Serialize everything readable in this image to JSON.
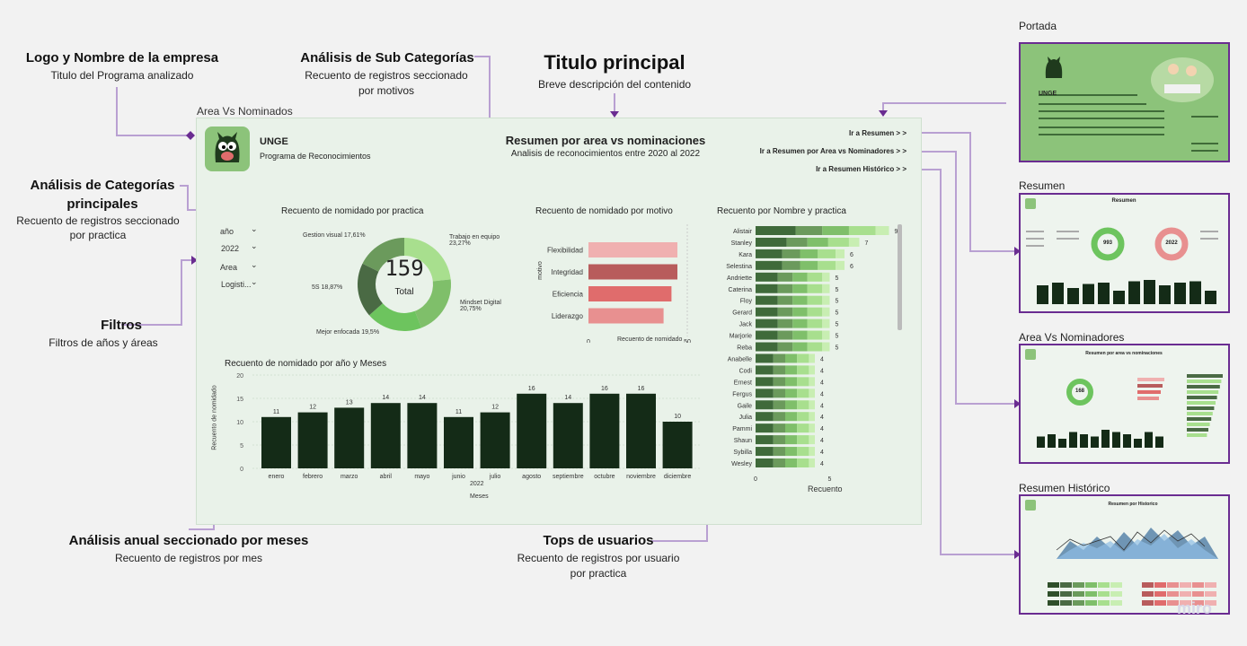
{
  "annotations": {
    "logo": {
      "title": "Logo y Nombre de la empresa",
      "sub": "Titulo del Programa analizado"
    },
    "subcat": {
      "title": "Análisis de Sub Categorías",
      "sub1": "Recuento de registros seccionado",
      "sub2": "por motivos"
    },
    "main": {
      "title": "Titulo principal",
      "sub": "Breve descripción del contenido"
    },
    "cat": {
      "title1": "Análisis de Categorías",
      "title2": "principales",
      "sub1": "Recuento de registros seccionado",
      "sub2": "por practica"
    },
    "filtros": {
      "title": "Filtros",
      "sub": "Filtros de años y áreas"
    },
    "anual": {
      "title": "Análisis anual seccionado por meses",
      "sub": "Recuento de registros por mes"
    },
    "tops": {
      "title": "Tops de usuarios",
      "sub1": "Recuento de registros por usuario",
      "sub2": "por practica"
    }
  },
  "dashboard": {
    "frame_title": "Area Vs Nominados",
    "logo_text": "UNGE",
    "company": "UNGE",
    "program": "Programa de Reconocimientos",
    "title": "Resumen por area vs nominaciones",
    "subtitle": "Analisis de reconocimientos entre 2020 al 2022",
    "nav": [
      "Ir a Resumen > >",
      "Ir a Resumen por Area vs Nominadores > >",
      "Ir a Resumen Histórico > >"
    ],
    "filters": [
      {
        "label": "año",
        "value": "2022"
      },
      {
        "label": "Area",
        "value": "Logisti..."
      }
    ]
  },
  "donut": {
    "title": "Recuento de nomidado por practica",
    "total": "159",
    "total_label": "Total",
    "labels": [
      "Gestion visual 17,61%",
      "Trabajo en equipo 23,27%",
      "Mindset Digital 20,75%",
      "Mejor enfocada 19,5%",
      "5S 18,87%"
    ]
  },
  "motivo": {
    "title": "Recuento de nomidado por motivo",
    "ylabel": "motivo",
    "xlabel": "Recuento de nomidado",
    "ticks": [
      "0",
      "50"
    ]
  },
  "monthly": {
    "title": "Recuento de nomidado por año y Meses",
    "ylabel": "Recuento de nomidado",
    "xlabel": "Meses",
    "year": "2022",
    "yticks": [
      "20",
      "15",
      "10",
      "5",
      "0"
    ]
  },
  "tops": {
    "title": "Recuento por Nombre y practica",
    "xlabel": "Recuento",
    "ticks": [
      "0",
      "5"
    ]
  },
  "chart_data": [
    {
      "type": "pie",
      "title": "Recuento de nomidado por practica",
      "categories": [
        "Trabajo en equipo",
        "Mindset Digital",
        "Mejor enfocada",
        "5S",
        "Gestion visual"
      ],
      "values": [
        23.27,
        20.75,
        19.5,
        18.87,
        17.61
      ],
      "colors": [
        "#a8df8e",
        "#7fbf6a",
        "#6dc45e",
        "#4a6a44",
        "#6b9a5c"
      ],
      "total": 159
    },
    {
      "type": "bar",
      "title": "Recuento de nomidado por motivo",
      "categories": [
        "Flexibilidad",
        "Integridad",
        "Eficiencia",
        "Liderazgo"
      ],
      "values": [
        45,
        45,
        42,
        38
      ],
      "colors": [
        "#f0b0b0",
        "#b85c5c",
        "#e06c6c",
        "#e89090"
      ],
      "xlim": [
        0,
        50
      ]
    },
    {
      "type": "bar",
      "title": "Recuento de nomidado por año y Meses",
      "categories": [
        "enero",
        "febrero",
        "marzo",
        "abril",
        "mayo",
        "junio",
        "julio",
        "agosto",
        "septiembre",
        "octubre",
        "noviembre",
        "diciembre"
      ],
      "values": [
        11,
        12,
        13,
        14,
        14,
        11,
        12,
        16,
        14,
        16,
        16,
        10
      ],
      "ylim": [
        0,
        20
      ],
      "color": "#142b17"
    },
    {
      "type": "bar",
      "title": "Recuento por Nombre y practica",
      "categories": [
        "Alistair",
        "Stanley",
        "Kara",
        "Selestina",
        "Andriette",
        "Caterina",
        "Floy",
        "Gerard",
        "Jack",
        "Marjorie",
        "Reba",
        "Anabelle",
        "Codi",
        "Ernest",
        "Fergus",
        "Gaile",
        "Julia",
        "Pammi",
        "Shaun",
        "Sybilla",
        "Wesley"
      ],
      "values": [
        9,
        7,
        6,
        6,
        5,
        5,
        5,
        5,
        5,
        5,
        5,
        4,
        4,
        4,
        4,
        4,
        4,
        4,
        4,
        4,
        4
      ],
      "xlim": [
        0,
        9.5
      ]
    }
  ],
  "thumbnails": [
    {
      "label": "Portada",
      "text": "UNGE"
    },
    {
      "label": "Resumen",
      "text": "Resumen",
      "n1": "993",
      "n2": "2022"
    },
    {
      "label": "Area Vs Nominadores",
      "text": "Resumen por area vs nominaciones",
      "n1": "168"
    },
    {
      "label": "Resumen Histórico",
      "text": "Resumen por Historico"
    }
  ],
  "watermark": "miro",
  "colors": {
    "accent": "#6a2c91",
    "connector": "#b9a0d2",
    "dark_green": "#142b17",
    "thumb_green": "#8cc37a"
  }
}
